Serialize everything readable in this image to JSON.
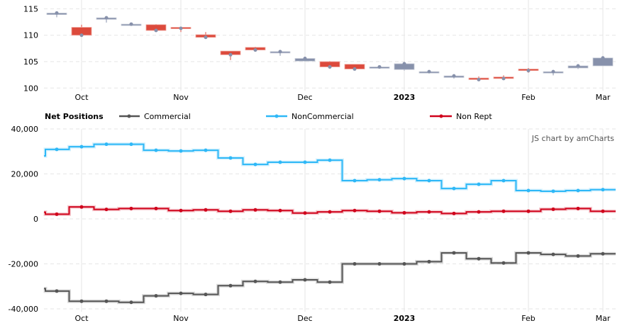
{
  "chart_data": [
    {
      "type": "candlestick",
      "title": "",
      "ylim": [
        99.5,
        116
      ],
      "y_ticks": [
        100,
        105,
        110,
        115
      ],
      "grid": true,
      "x_ticks": [
        {
          "label": "Oct",
          "index": 1,
          "bold": false
        },
        {
          "label": "Nov",
          "index": 5,
          "bold": false
        },
        {
          "label": "Dec",
          "index": 10,
          "bold": false
        },
        {
          "label": "2023",
          "index": 14,
          "bold": true
        },
        {
          "label": "Feb",
          "index": 19,
          "bold": false
        },
        {
          "label": "Mar",
          "index": 22,
          "bold": false
        }
      ],
      "candles": [
        {
          "o": 113.9,
          "h": 114.4,
          "l": 113.4,
          "c": 114.2
        },
        {
          "o": 111.5,
          "h": 112.0,
          "l": 110.0,
          "c": 110.0
        },
        {
          "o": 113.0,
          "h": 113.4,
          "l": 112.4,
          "c": 113.3
        },
        {
          "o": 112.0,
          "h": 112.3,
          "l": 111.8,
          "c": 112.1
        },
        {
          "o": 112.0,
          "h": 112.1,
          "l": 110.9,
          "c": 110.9
        },
        {
          "o": 111.5,
          "h": 111.6,
          "l": 110.6,
          "c": 111.3
        },
        {
          "o": 110.1,
          "h": 110.6,
          "l": 109.3,
          "c": 109.6
        },
        {
          "o": 107.0,
          "h": 107.0,
          "l": 105.3,
          "c": 106.3
        },
        {
          "o": 107.7,
          "h": 107.8,
          "l": 107.1,
          "c": 107.2
        },
        {
          "o": 106.7,
          "h": 107.0,
          "l": 106.1,
          "c": 106.9
        },
        {
          "o": 105.1,
          "h": 105.8,
          "l": 105.0,
          "c": 105.6
        },
        {
          "o": 105.0,
          "h": 105.1,
          "l": 103.7,
          "c": 104.0
        },
        {
          "o": 104.5,
          "h": 104.5,
          "l": 103.6,
          "c": 103.6
        },
        {
          "o": 103.9,
          "h": 104.1,
          "l": 103.8,
          "c": 104.0
        },
        {
          "o": 103.5,
          "h": 104.7,
          "l": 103.3,
          "c": 104.6
        },
        {
          "o": 102.9,
          "h": 103.2,
          "l": 102.8,
          "c": 103.1
        },
        {
          "o": 102.0,
          "h": 102.4,
          "l": 101.8,
          "c": 102.3
        },
        {
          "o": 101.9,
          "h": 102.2,
          "l": 101.4,
          "c": 101.6
        },
        {
          "o": 102.1,
          "h": 102.4,
          "l": 101.8,
          "c": 101.8
        },
        {
          "o": 103.6,
          "h": 103.8,
          "l": 102.9,
          "c": 103.3
        },
        {
          "o": 103.0,
          "h": 103.3,
          "l": 102.4,
          "c": 103.1
        },
        {
          "o": 103.8,
          "h": 104.3,
          "l": 103.6,
          "c": 104.2
        },
        {
          "o": 104.2,
          "h": 105.8,
          "l": 104.2,
          "c": 105.7
        }
      ],
      "colors": {
        "up": "#8791ab",
        "down": "#dc4a3c"
      }
    },
    {
      "type": "line",
      "step": true,
      "title": "Net Positions",
      "ylim": [
        -40000,
        40000
      ],
      "y_ticks": [
        {
          "value": 40000,
          "label": "40,000"
        },
        {
          "value": 20000,
          "label": "20,000"
        },
        {
          "value": 0,
          "label": "0"
        },
        {
          "value": -20000,
          "label": "-20,000"
        },
        {
          "value": -40000,
          "label": "-40,000"
        }
      ],
      "grid": true,
      "legend": "top",
      "credit": "JS chart by amCharts",
      "series": [
        {
          "name": "Commercial",
          "color": "#555555",
          "start": -31000,
          "values": [
            -32100,
            -36600,
            -36600,
            -37100,
            -34200,
            -33100,
            -33600,
            -29700,
            -27800,
            -28100,
            -27100,
            -28100,
            -20000,
            -20000,
            -20000,
            -19000,
            -15100,
            -17700,
            -19600,
            -15100,
            -15800,
            -16500,
            -15500
          ]
        },
        {
          "name": "NonCommercial",
          "color": "#2eb8f7",
          "start": 28000,
          "values": [
            30900,
            32100,
            33200,
            33200,
            30500,
            30200,
            30500,
            27100,
            24200,
            25200,
            25200,
            26100,
            17000,
            17400,
            17900,
            17000,
            13500,
            15400,
            17000,
            12600,
            12300,
            12600,
            13000
          ]
        },
        {
          "name": "Non Rept",
          "color": "#d0021b",
          "start": 3000,
          "values": [
            2100,
            5300,
            4200,
            4600,
            4600,
            3700,
            4000,
            3400,
            4000,
            3700,
            2600,
            3100,
            3700,
            3400,
            2700,
            3100,
            2400,
            3100,
            3400,
            3400,
            4300,
            4600,
            3400
          ]
        }
      ]
    }
  ]
}
